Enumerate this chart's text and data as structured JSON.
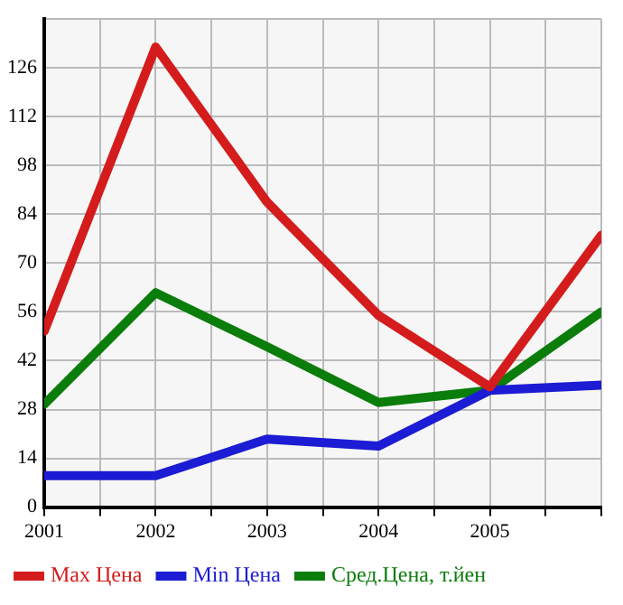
{
  "chart_data": {
    "type": "line",
    "x": [
      2001,
      2002,
      2003,
      2004,
      2005,
      2006
    ],
    "series": [
      {
        "name": "Max Цена",
        "color": "#d41c1c",
        "values": [
          50.5,
          132,
          87.5,
          55,
          34.5,
          78
        ]
      },
      {
        "name": "Min Цена",
        "color": "#1c1cd4",
        "values": [
          9,
          9,
          19.5,
          17.5,
          33.5,
          35
        ]
      },
      {
        "name": "Сред.Цена, т.йен",
        "color": "#0a7d0a",
        "values": [
          29.5,
          61.5,
          46,
          30,
          33.5,
          56
        ]
      }
    ],
    "xlim": [
      2001,
      2006
    ],
    "xticks": [
      2001,
      {
        "value": 2001.5,
        "label": null
      },
      2002,
      {
        "value": 2002.5,
        "label": null
      },
      2003,
      {
        "value": 2003.5,
        "label": null
      },
      2004,
      {
        "value": 2004.5,
        "label": null
      },
      2005,
      {
        "value": 2005.5,
        "label": null
      },
      {
        "value": 2006,
        "label": null
      }
    ],
    "ylim": [
      0,
      140
    ],
    "yticks": [
      0,
      14,
      28,
      42,
      56,
      70,
      84,
      98,
      112,
      126,
      {
        "value": 140,
        "label": null
      }
    ],
    "grid": true,
    "legend": "bottom",
    "marker": "none",
    "line_style": "solid"
  }
}
